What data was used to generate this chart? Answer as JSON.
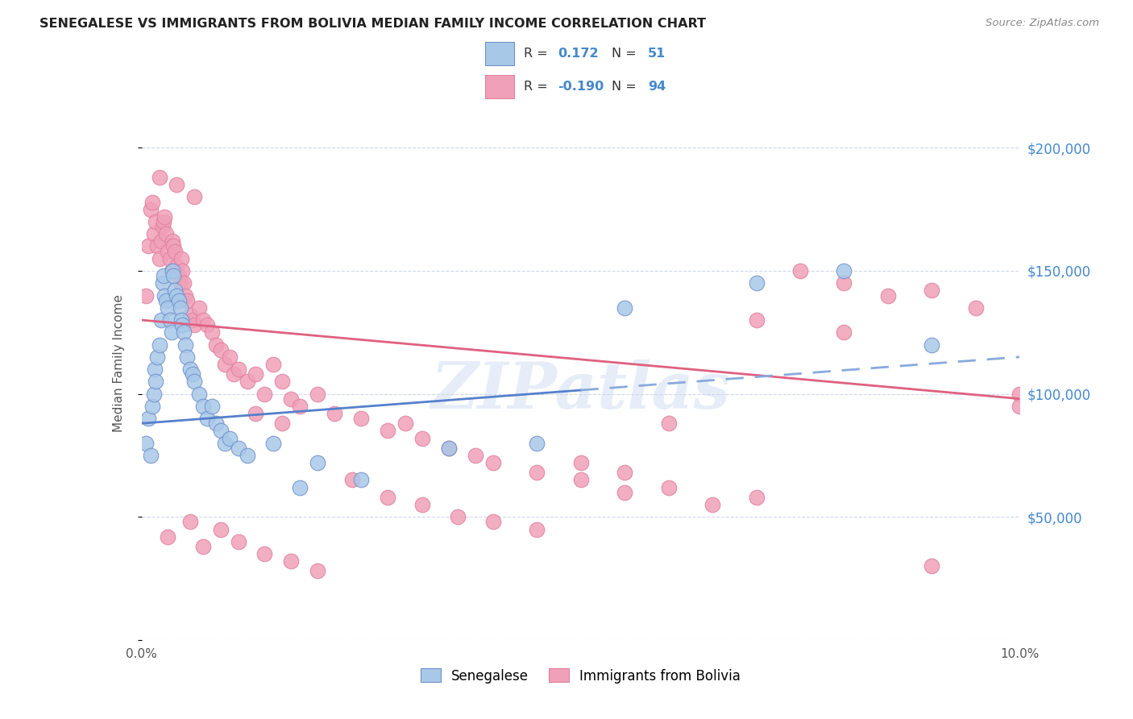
{
  "title": "SENEGALESE VS IMMIGRANTS FROM BOLIVIA MEDIAN FAMILY INCOME CORRELATION CHART",
  "source": "Source: ZipAtlas.com",
  "ylabel": "Median Family Income",
  "xmin": 0.0,
  "xmax": 10.0,
  "ymin": 0,
  "ymax": 225000,
  "yticks": [
    0,
    50000,
    100000,
    150000,
    200000
  ],
  "ytick_labels": [
    "",
    "$50,000",
    "$100,000",
    "$150,000",
    "$200,000"
  ],
  "senegalese_color": "#a8c8e8",
  "bolivia_color": "#f0a0b8",
  "trend_blue_solid": "#5580cc",
  "trend_blue_dash": "#88aadd",
  "trend_pink": "#e06080",
  "watermark": "ZIPatlas",
  "grid_color": "#d0d8e8",
  "background_color": "#ffffff",
  "blue_solid_end": 5.0,
  "blue_y_at_0": 88000,
  "blue_y_at_10": 115000,
  "pink_y_at_0": 130000,
  "pink_y_at_10": 98000,
  "senegalese_x": [
    0.05,
    0.08,
    0.1,
    0.12,
    0.14,
    0.15,
    0.16,
    0.18,
    0.2,
    0.22,
    0.24,
    0.25,
    0.26,
    0.28,
    0.3,
    0.32,
    0.34,
    0.35,
    0.36,
    0.38,
    0.4,
    0.42,
    0.44,
    0.45,
    0.46,
    0.48,
    0.5,
    0.52,
    0.55,
    0.58,
    0.6,
    0.65,
    0.7,
    0.75,
    0.8,
    0.85,
    0.9,
    0.95,
    1.0,
    1.1,
    1.2,
    1.5,
    1.8,
    2.0,
    2.5,
    3.5,
    4.5,
    5.5,
    7.0,
    8.0,
    9.0
  ],
  "senegalese_y": [
    80000,
    90000,
    75000,
    95000,
    100000,
    110000,
    105000,
    115000,
    120000,
    130000,
    145000,
    148000,
    140000,
    138000,
    135000,
    130000,
    125000,
    150000,
    148000,
    142000,
    140000,
    138000,
    135000,
    130000,
    128000,
    125000,
    120000,
    115000,
    110000,
    108000,
    105000,
    100000,
    95000,
    90000,
    95000,
    88000,
    85000,
    80000,
    82000,
    78000,
    75000,
    80000,
    62000,
    72000,
    65000,
    78000,
    80000,
    135000,
    145000,
    150000,
    120000
  ],
  "bolivia_x": [
    0.05,
    0.08,
    0.1,
    0.12,
    0.14,
    0.16,
    0.18,
    0.2,
    0.22,
    0.24,
    0.25,
    0.26,
    0.28,
    0.3,
    0.32,
    0.34,
    0.35,
    0.36,
    0.38,
    0.4,
    0.42,
    0.44,
    0.45,
    0.46,
    0.48,
    0.5,
    0.52,
    0.55,
    0.58,
    0.6,
    0.65,
    0.7,
    0.75,
    0.8,
    0.85,
    0.9,
    0.95,
    1.0,
    1.05,
    1.1,
    1.2,
    1.3,
    1.4,
    1.5,
    1.6,
    1.7,
    1.8,
    2.0,
    2.2,
    2.5,
    2.8,
    3.0,
    3.2,
    3.5,
    3.8,
    4.0,
    4.5,
    5.0,
    5.5,
    6.0,
    6.5,
    7.0,
    7.5,
    8.0,
    8.5,
    9.0,
    9.5,
    10.0,
    1.3,
    1.6,
    0.3,
    0.55,
    0.7,
    0.9,
    1.1,
    1.4,
    1.7,
    2.0,
    2.4,
    2.8,
    3.2,
    3.6,
    4.0,
    4.5,
    5.0,
    5.5,
    6.0,
    7.0,
    8.0,
    9.0,
    10.0,
    0.2,
    0.4,
    0.6
  ],
  "bolivia_y": [
    140000,
    160000,
    175000,
    178000,
    165000,
    170000,
    160000,
    155000,
    162000,
    168000,
    170000,
    172000,
    165000,
    158000,
    155000,
    150000,
    162000,
    160000,
    158000,
    152000,
    148000,
    145000,
    155000,
    150000,
    145000,
    140000,
    138000,
    132000,
    130000,
    128000,
    135000,
    130000,
    128000,
    125000,
    120000,
    118000,
    112000,
    115000,
    108000,
    110000,
    105000,
    108000,
    100000,
    112000,
    105000,
    98000,
    95000,
    100000,
    92000,
    90000,
    85000,
    88000,
    82000,
    78000,
    75000,
    72000,
    68000,
    65000,
    60000,
    62000,
    55000,
    58000,
    150000,
    145000,
    140000,
    142000,
    135000,
    100000,
    92000,
    88000,
    42000,
    48000,
    38000,
    45000,
    40000,
    35000,
    32000,
    28000,
    65000,
    58000,
    55000,
    50000,
    48000,
    45000,
    72000,
    68000,
    88000,
    130000,
    125000,
    30000,
    95000,
    188000,
    185000,
    180000
  ]
}
